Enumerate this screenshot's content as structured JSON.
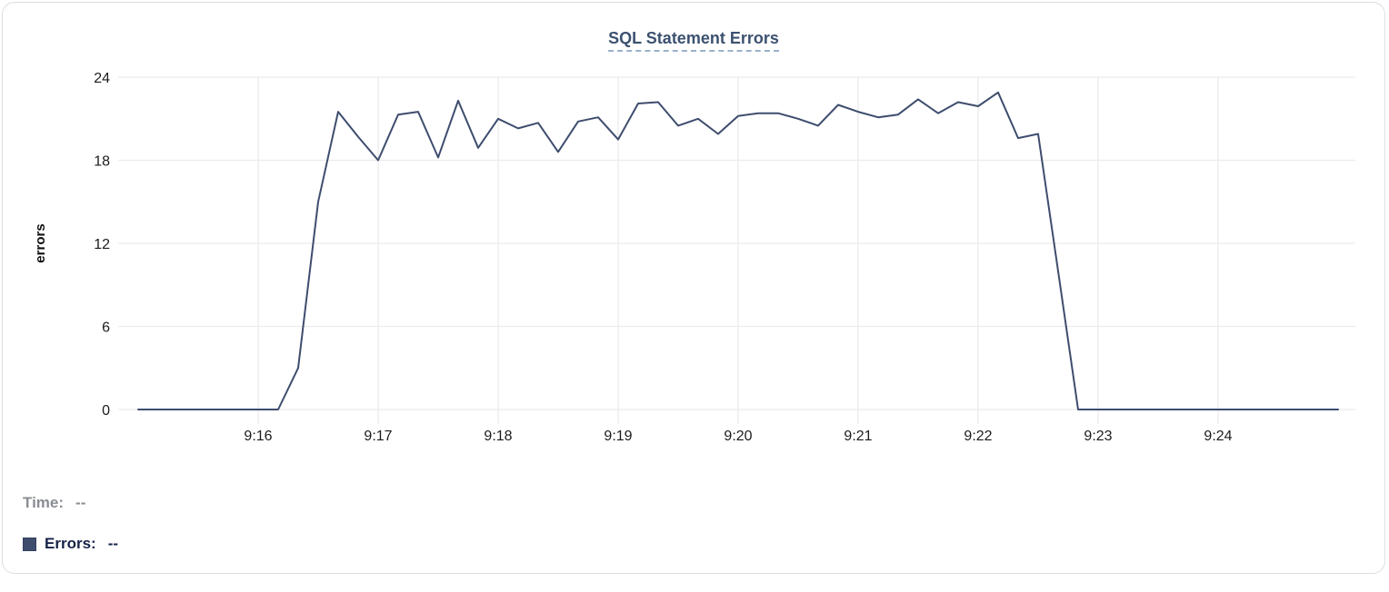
{
  "card": {
    "title": "SQL Statement Errors"
  },
  "legend": {
    "time_label": "Time:",
    "time_value": "--",
    "errors_label": "Errors:",
    "errors_value": "--"
  },
  "colors": {
    "line": "#3e4d6e",
    "grid": "#ececec",
    "axis_text": "#1c1c1e",
    "title_text": "#3c5170",
    "title_underline": "#9cb0cc",
    "legend_time": "#8a8d93",
    "legend_errors": "#152347",
    "swatch": "#3e4d6e",
    "card_border": "#dcdee1"
  },
  "chart_data": {
    "type": "line",
    "title": "SQL Statement Errors",
    "xlabel": "",
    "ylabel": "errors",
    "ylim": [
      0,
      24
    ],
    "yticks": [
      0,
      6,
      12,
      18,
      24
    ],
    "xticks": [
      "9:16",
      "9:17",
      "9:18",
      "9:19",
      "9:20",
      "9:21",
      "9:22",
      "9:23",
      "9:24"
    ],
    "grid": true,
    "legend_position": "below-left-hover-readout",
    "series_name": "Errors",
    "x": [
      "9:15:00",
      "9:15:10",
      "9:15:20",
      "9:15:30",
      "9:15:40",
      "9:15:50",
      "9:16:00",
      "9:16:10",
      "9:16:20",
      "9:16:30",
      "9:16:40",
      "9:16:50",
      "9:17:00",
      "9:17:10",
      "9:17:20",
      "9:17:30",
      "9:17:40",
      "9:17:50",
      "9:18:00",
      "9:18:10",
      "9:18:20",
      "9:18:30",
      "9:18:40",
      "9:18:50",
      "9:19:00",
      "9:19:10",
      "9:19:20",
      "9:19:30",
      "9:19:40",
      "9:19:50",
      "9:20:00",
      "9:20:10",
      "9:20:20",
      "9:20:30",
      "9:20:40",
      "9:20:50",
      "9:21:00",
      "9:21:10",
      "9:21:20",
      "9:21:30",
      "9:21:40",
      "9:21:50",
      "9:22:00",
      "9:22:10",
      "9:22:20",
      "9:22:30",
      "9:22:40",
      "9:22:50",
      "9:23:00",
      "9:23:10",
      "9:23:20",
      "9:23:30",
      "9:23:40",
      "9:23:50",
      "9:24:00",
      "9:24:10",
      "9:24:20",
      "9:24:30",
      "9:24:40",
      "9:24:50",
      "9:25:00"
    ],
    "values": [
      0,
      0,
      0,
      0,
      0,
      0,
      0,
      0,
      3,
      15,
      21.5,
      19.7,
      18,
      21.3,
      21.5,
      18.2,
      22.3,
      18.9,
      21,
      20.3,
      20.7,
      18.6,
      20.8,
      21.1,
      19.5,
      22.1,
      22.2,
      20.5,
      21,
      19.9,
      21.2,
      21.4,
      21.4,
      21,
      20.5,
      22,
      21.5,
      21.1,
      21.3,
      22.4,
      21.4,
      22.2,
      21.9,
      22.9,
      19.6,
      19.9,
      10,
      0,
      0,
      0,
      0,
      0,
      0,
      0,
      0,
      0,
      0,
      0,
      0,
      0,
      0
    ]
  }
}
